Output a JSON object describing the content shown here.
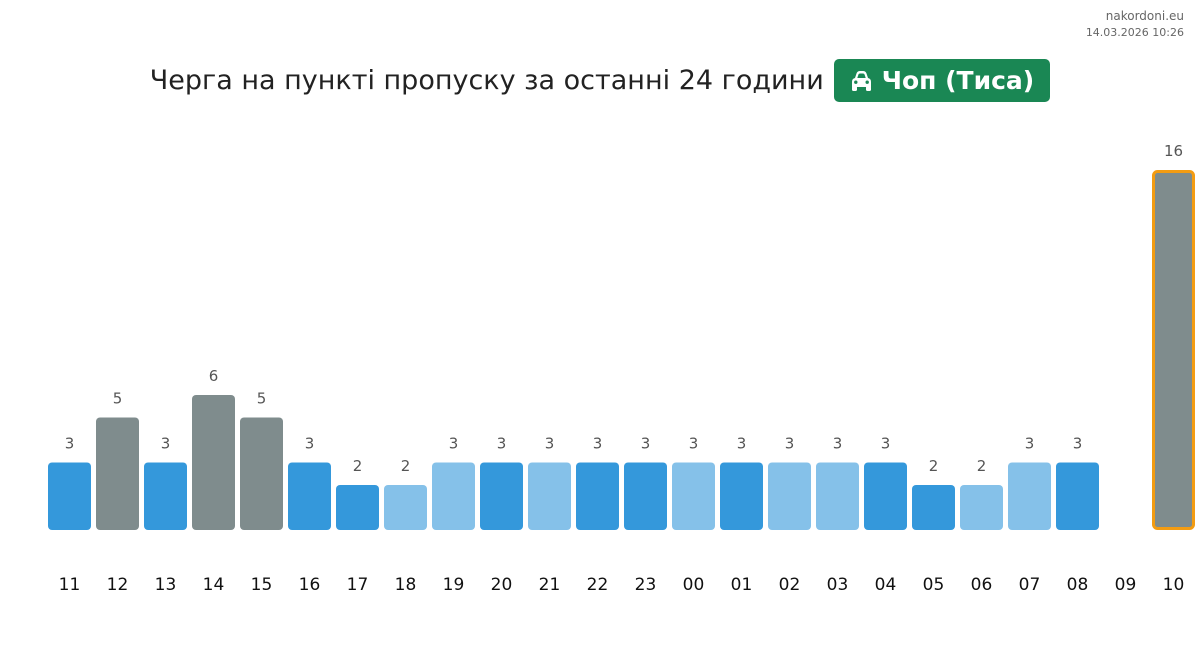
{
  "site": {
    "domain": "nakordoni.eu",
    "timestamp": "14.03.2026 10:26"
  },
  "header": {
    "title": "Черга на пункті пропуску за останні 24 години",
    "badge_label": "Чоп (Тиса)",
    "badge_icon": "car-icon"
  },
  "colors": {
    "dark_blue": "#3498db",
    "light_blue": "#85c1e9",
    "gray": "#7f8c8d",
    "highlight_border": "#f39c12",
    "badge": "#1a8754"
  },
  "chart_data": {
    "type": "bar",
    "categories": [
      "11",
      "12",
      "13",
      "14",
      "15",
      "16",
      "17",
      "18",
      "19",
      "20",
      "21",
      "22",
      "23",
      "00",
      "01",
      "02",
      "03",
      "04",
      "05",
      "06",
      "07",
      "08",
      "09",
      "10"
    ],
    "values": [
      3,
      5,
      3,
      6,
      5,
      3,
      2,
      2,
      3,
      3,
      3,
      3,
      3,
      3,
      3,
      3,
      3,
      3,
      2,
      2,
      3,
      3,
      null,
      16
    ],
    "data_labels": [
      "3",
      "5",
      "3",
      "6",
      "5",
      "3",
      "2",
      "2",
      "3",
      "3",
      "3",
      "3",
      "3",
      "3",
      "3",
      "3",
      "3",
      "3",
      "2",
      "2",
      "3",
      "3",
      "",
      "16"
    ],
    "bar_colors": [
      "#3498db",
      "#7f8c8d",
      "#3498db",
      "#7f8c8d",
      "#7f8c8d",
      "#3498db",
      "#3498db",
      "#85c1e9",
      "#85c1e9",
      "#3498db",
      "#85c1e9",
      "#3498db",
      "#3498db",
      "#85c1e9",
      "#3498db",
      "#85c1e9",
      "#85c1e9",
      "#3498db",
      "#3498db",
      "#85c1e9",
      "#85c1e9",
      "#3498db",
      "#3498db",
      "#7f8c8d"
    ],
    "highlighted_category": "10",
    "ylim": [
      0,
      16
    ],
    "grid": false,
    "legend": "none"
  }
}
